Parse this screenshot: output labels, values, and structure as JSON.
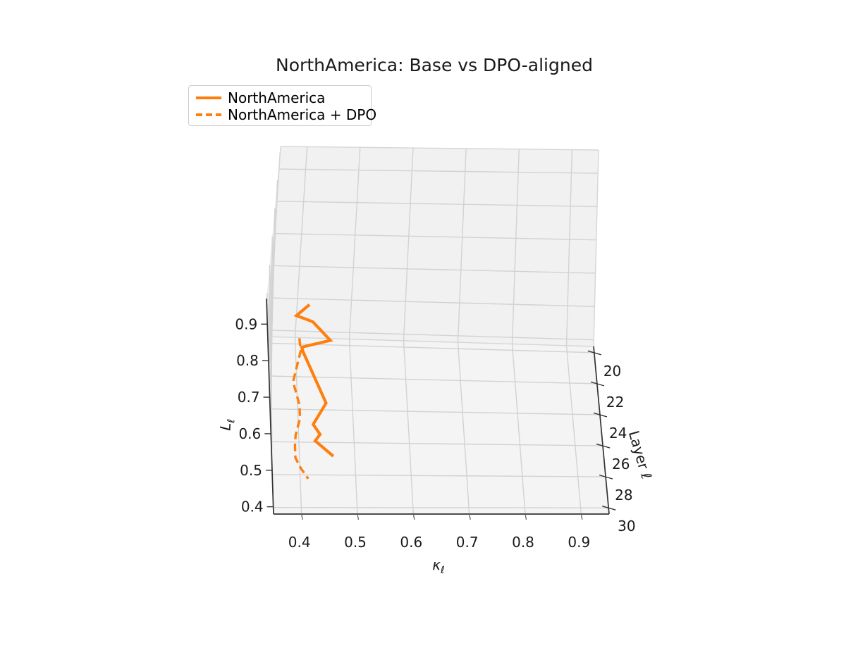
{
  "chart_data": {
    "type": "line3d",
    "title": "NorthAmerica: Base vs DPO-aligned",
    "axes": {
      "x": {
        "label": "κ",
        "label_sub": "ℓ",
        "ticks": [
          0.4,
          0.5,
          0.6,
          0.7,
          0.8,
          0.9
        ],
        "range": [
          0.35,
          0.95
        ]
      },
      "y": {
        "label": "Layer ℓ",
        "ticks": [
          20,
          22,
          24,
          26,
          28,
          30
        ],
        "range": [
          19.6,
          30.4
        ]
      },
      "z": {
        "label": "L",
        "label_sub": "ℓ",
        "ticks": [
          0.4,
          0.5,
          0.6,
          0.7,
          0.8,
          0.9
        ],
        "range": [
          0.38,
          0.97
        ]
      }
    },
    "grid": true,
    "legend_position": "upper-left",
    "series": [
      {
        "name": "NorthAmerica",
        "style": "solid",
        "color": "#ff7f0e",
        "layers": [
          20,
          21,
          22,
          23,
          24,
          25,
          26,
          27,
          28,
          29,
          30
        ],
        "kappa": [
          0.422,
          0.397,
          0.426,
          0.458,
          0.405,
          0.407,
          0.449,
          0.425,
          0.437,
          0.428,
          0.46
        ],
        "L": [
          0.502,
          0.516,
          0.546,
          0.538,
          0.563,
          0.595,
          0.493,
          0.477,
          0.494,
          0.52,
          0.521
        ]
      },
      {
        "name": "NorthAmerica + DPO",
        "style": "dashed",
        "color": "#ff7f0e",
        "layers": [
          20,
          21,
          22,
          23,
          24,
          25,
          26,
          27,
          28,
          29,
          30
        ],
        "kappa": [
          0.407,
          0.408,
          0.4,
          0.392,
          0.403,
          0.403,
          0.394,
          0.392,
          0.392,
          0.401,
          0.414
        ],
        "L": [
          0.398,
          0.408,
          0.411,
          0.413,
          0.394,
          0.402,
          0.4,
          0.415,
          0.428,
          0.444,
          0.459
        ]
      }
    ],
    "colors": {
      "accent": "#ff7f0e",
      "grid": "#d2d2d2",
      "pane_wall": "#f1f1f2",
      "pane_floor": "#f4f4f5",
      "pane_side": "#ececee",
      "spine": "#333333",
      "tick": "#666666",
      "pane_edge": "#d6d6d6",
      "text": "#1a1a1a"
    }
  }
}
